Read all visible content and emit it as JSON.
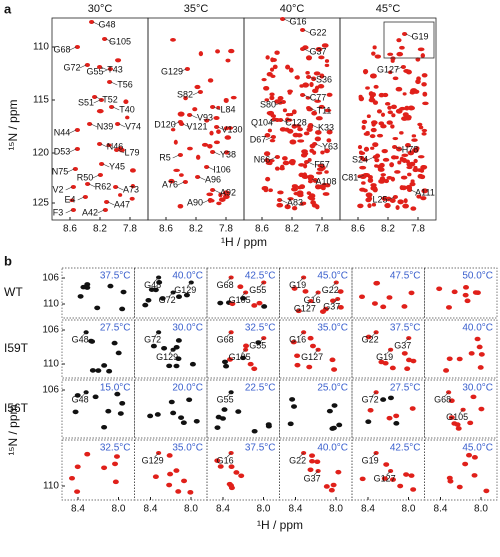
{
  "figure": {
    "a": {
      "label": "a",
      "y_axis_label": "¹⁵N / ppm",
      "x_axis_label": "¹H / ppm",
      "yticks": [
        "110",
        "115",
        "120",
        "125"
      ],
      "xticks": [
        "8.6",
        "8.2",
        "7.8"
      ],
      "panels": [
        {
          "temperature": "30°C",
          "peaks": [
            "G68",
            "G48",
            "G105",
            "G72",
            "G55",
            "T43",
            "T56",
            "S51",
            "T52",
            "T40",
            "V74",
            "N39",
            "N44",
            "N46",
            "L79",
            "D53",
            "Y45",
            "N75",
            "R50",
            "V2",
            "R62",
            "A73",
            "E4",
            "A47",
            "F3",
            "A42"
          ]
        },
        {
          "temperature": "35°C",
          "peaks": [
            "G129",
            "S82",
            "L84",
            "V93",
            "D120",
            "V121",
            "V130",
            "Y38",
            "R5",
            "I106",
            "A96",
            "A76",
            "A92",
            "A90"
          ]
        },
        {
          "temperature": "40°C",
          "peaks": [
            "G16",
            "G22",
            "G37",
            "S36",
            "C77",
            "S80",
            "T11",
            "Q104",
            "C128",
            "K33",
            "D67",
            "N66",
            "Y63",
            "F57",
            "A108",
            "A83"
          ]
        },
        {
          "temperature": "45°C",
          "peaks": [
            "G19",
            "G127",
            "H78",
            "S24",
            "C81",
            "A111",
            "L25"
          ]
        }
      ]
    },
    "b": {
      "label": "b",
      "y_axis_label": "¹⁵N / ppm",
      "x_axis_label": "¹H / ppm",
      "yticks": [
        "106",
        "110"
      ],
      "xticks": [
        "8.4",
        "8.0"
      ],
      "rows": [
        {
          "name": "WT",
          "cells": [
            {
              "temperature": "37.5°C",
              "peaks": []
            },
            {
              "temperature": "40.0°C",
              "peaks": [
                "G48",
                "G72",
                "G129"
              ]
            },
            {
              "temperature": "42.5°C",
              "peaks": [
                "G68",
                "G105",
                "G55"
              ]
            },
            {
              "temperature": "45.0°C",
              "peaks": [
                "G19",
                "G16",
                "G22",
                "G127",
                "G37"
              ]
            },
            {
              "temperature": "47.5°C",
              "peaks": []
            },
            {
              "temperature": "50.0°C",
              "peaks": []
            }
          ]
        },
        {
          "name": "I59T",
          "cells": [
            {
              "temperature": "27.5°C",
              "peaks": [
                "G48"
              ]
            },
            {
              "temperature": "30.0°C",
              "peaks": [
                "G72",
                "G129"
              ]
            },
            {
              "temperature": "32.5°C",
              "peaks": [
                "G68",
                "G105",
                "G55"
              ]
            },
            {
              "temperature": "35.0°C",
              "peaks": [
                "G16",
                "G127"
              ]
            },
            {
              "temperature": "37.5°C",
              "peaks": [
                "G22",
                "G19",
                "G37"
              ]
            },
            {
              "temperature": "40.0°C",
              "peaks": []
            }
          ]
        },
        {
          "name": "I56T",
          "cells": [
            {
              "temperature": "15.0°C",
              "peaks": [
                "G48"
              ]
            },
            {
              "temperature": "20.0°C",
              "peaks": []
            },
            {
              "temperature": "22.5°C",
              "peaks": [
                "G55"
              ]
            },
            {
              "temperature": "25.0°C",
              "peaks": []
            },
            {
              "temperature": "27.5°C",
              "peaks": [
                "G72"
              ]
            },
            {
              "temperature": "30.0°C",
              "peaks": [
                "G68",
                "G105"
              ]
            },
            {
              "temperature": "32.5°C",
              "peaks": []
            },
            {
              "temperature": "35.0°C",
              "peaks": [
                "G129"
              ]
            },
            {
              "temperature": "37.5°C",
              "peaks": [
                "G16"
              ]
            },
            {
              "temperature": "40.0°C",
              "peaks": [
                "G22",
                "G37"
              ]
            },
            {
              "temperature": "42.5°C",
              "peaks": [
                "G19",
                "G127"
              ]
            },
            {
              "temperature": "45.0°C",
              "peaks": []
            }
          ]
        }
      ]
    }
  }
}
